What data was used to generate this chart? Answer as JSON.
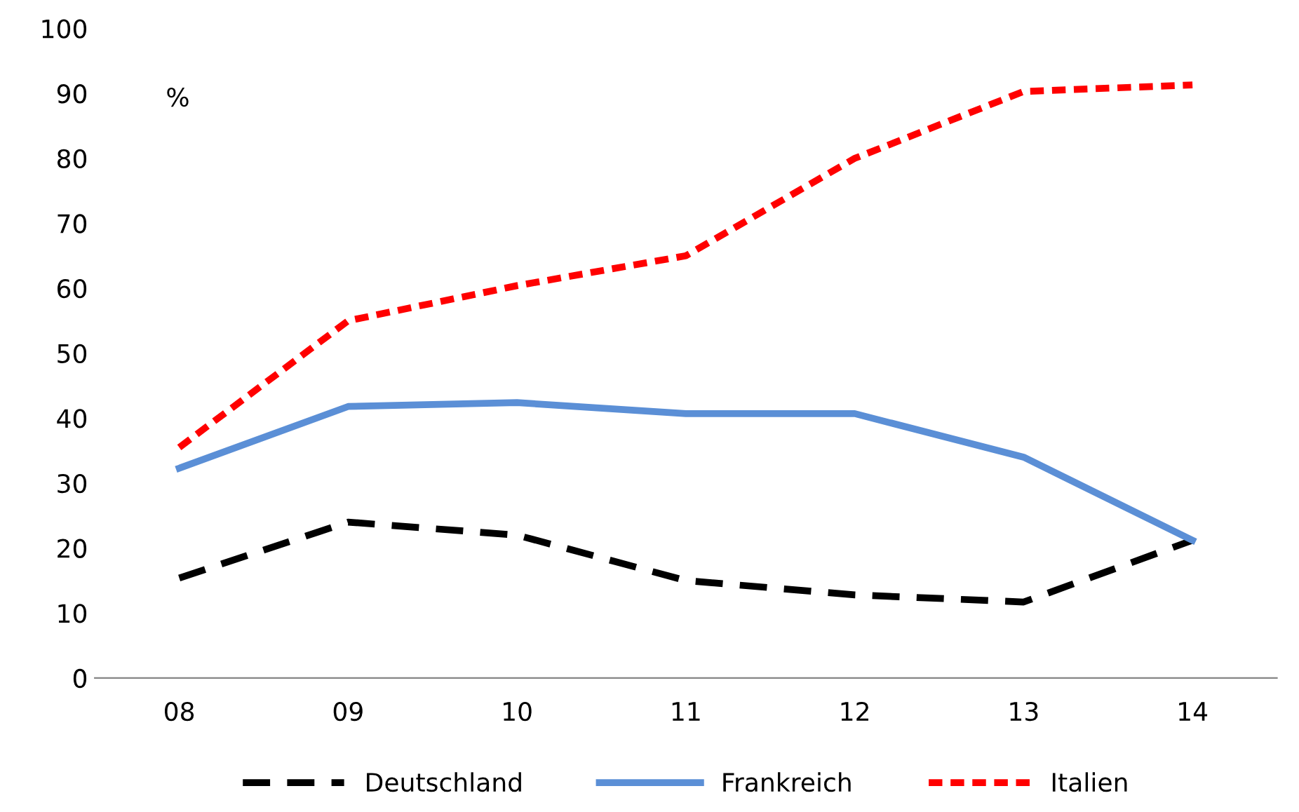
{
  "chart_data": {
    "type": "line",
    "categories": [
      "08",
      "09",
      "10",
      "11",
      "12",
      "13",
      "14"
    ],
    "series": [
      {
        "name": "Deutschland",
        "color": "#000000",
        "line_style": "dashed",
        "values": [
          15.4,
          24,
          22,
          15,
          12.8,
          11.7,
          21.2
        ]
      },
      {
        "name": "Frankreich",
        "color": "#5b8fd6",
        "line_style": "solid",
        "values": [
          32.3,
          41.8,
          42.4,
          40.7,
          40.7,
          34,
          21.2
        ]
      },
      {
        "name": "Italien",
        "color": "#ff0000",
        "line_style": "dotted",
        "values": [
          35.5,
          55,
          60.4,
          65,
          80,
          90.3,
          91.3
        ]
      }
    ],
    "ylim": [
      0,
      100
    ],
    "yticks": [
      0,
      10,
      20,
      30,
      40,
      50,
      60,
      70,
      80,
      90,
      100
    ],
    "annotations": [
      "%"
    ],
    "grid": false,
    "legend": "bottom",
    "marker": "none"
  }
}
